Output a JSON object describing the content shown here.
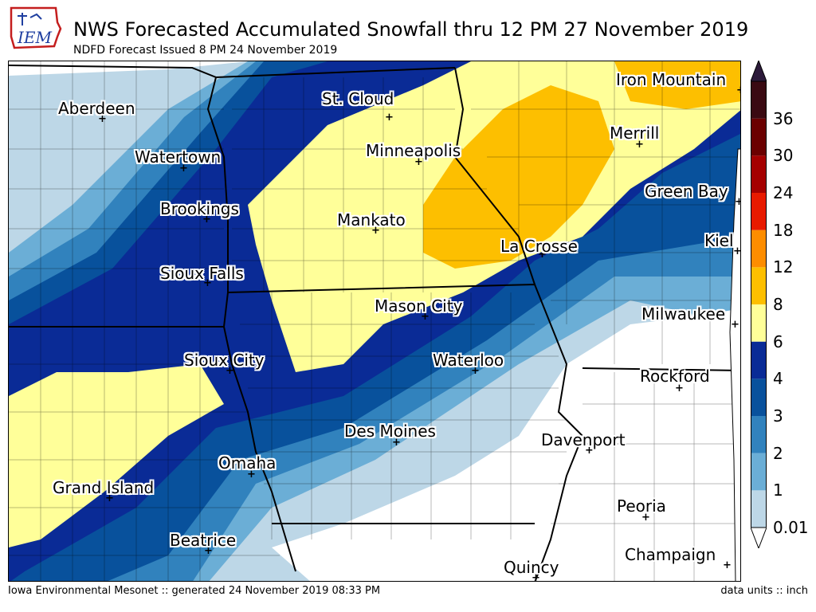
{
  "header": {
    "logo_text": "IEM",
    "title": "NWS Forecasted Accumulated Snowfall thru 12 PM 27 November 2019",
    "subtitle": "NDFD Forecast Issued 8 PM 24 November 2019"
  },
  "cities": [
    {
      "name": "Aberdeen"
    },
    {
      "name": "St. Cloud"
    },
    {
      "name": "Iron Mountain"
    },
    {
      "name": "Watertown"
    },
    {
      "name": "Minneapolis"
    },
    {
      "name": "Merrill"
    },
    {
      "name": "Brookings"
    },
    {
      "name": "Green Bay"
    },
    {
      "name": "Mankato"
    },
    {
      "name": "La Crosse"
    },
    {
      "name": "Kiel"
    },
    {
      "name": "Sioux Falls"
    },
    {
      "name": "Mason City"
    },
    {
      "name": "Milwaukee"
    },
    {
      "name": "Sioux City"
    },
    {
      "name": "Waterloo"
    },
    {
      "name": "Rockford"
    },
    {
      "name": "Des Moines"
    },
    {
      "name": "Davenport"
    },
    {
      "name": "Omaha"
    },
    {
      "name": "Grand Island"
    },
    {
      "name": "Peoria"
    },
    {
      "name": "Beatrice"
    },
    {
      "name": "Champaign"
    },
    {
      "name": "Quincy"
    }
  ],
  "colorbar": {
    "levels": [
      "0.01",
      "1",
      "2",
      "3",
      "4",
      "6",
      "8",
      "12",
      "18",
      "24",
      "30",
      "36"
    ],
    "colors": [
      "#bdd7e7",
      "#6baed6",
      "#3182bd",
      "#08519c",
      "#0a2b96",
      "#ffff99",
      "#fdbf00",
      "#fd8d00",
      "#e81a00",
      "#a50000",
      "#6b0000",
      "#3a0a12"
    ]
  },
  "footer": {
    "left": "Iowa Environmental Mesonet :: generated 24 November 2019 08:33 PM",
    "right": "data units :: inch"
  }
}
